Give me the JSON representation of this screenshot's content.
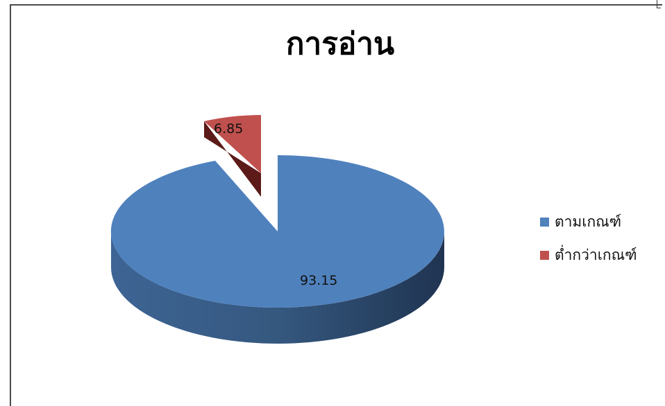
{
  "chart_data": {
    "type": "pie",
    "title": "การอ่าน",
    "categories": [
      "ตามเกณฑ์",
      "ต่ำกว่าเกณฑ์"
    ],
    "values": [
      93.15,
      6.85
    ],
    "colors": [
      "#4f81bd",
      "#c0504d"
    ],
    "data_labels": [
      "93.15",
      "6.85"
    ],
    "exploded": [
      false,
      true
    ],
    "style": "3d",
    "legend_position": "right"
  }
}
